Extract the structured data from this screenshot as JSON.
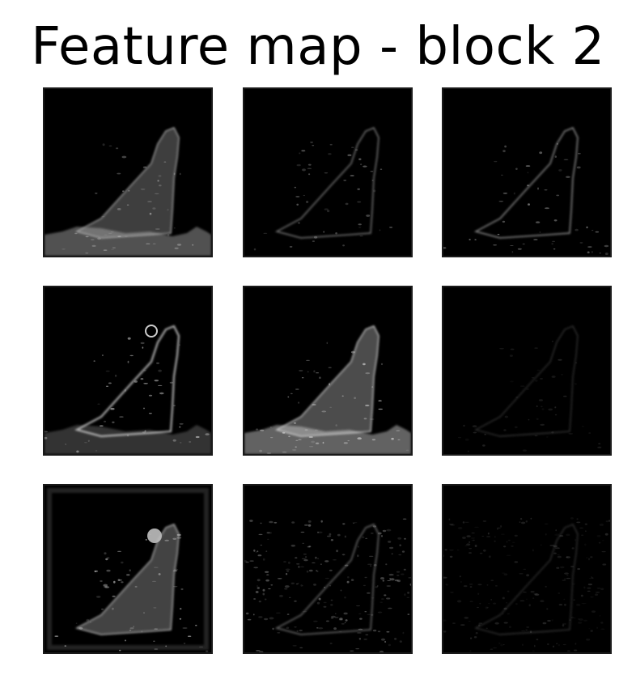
{
  "figure": {
    "title": "Feature map - block 2",
    "background": "#ffffff",
    "panel_background": "#000000",
    "panels": [
      {
        "row": 1,
        "col": 1,
        "style": "soft-body-glow",
        "intensity": 0.7
      },
      {
        "row": 1,
        "col": 2,
        "style": "thin-edge",
        "intensity": 0.55
      },
      {
        "row": 1,
        "col": 3,
        "style": "thin-edge-strong",
        "intensity": 0.65
      },
      {
        "row": 2,
        "col": 1,
        "style": "outline-bright",
        "intensity": 0.8
      },
      {
        "row": 2,
        "col": 2,
        "style": "body-texture",
        "intensity": 0.85
      },
      {
        "row": 2,
        "col": 3,
        "style": "faint-edge",
        "intensity": 0.35
      },
      {
        "row": 3,
        "col": 1,
        "style": "silhouette-head",
        "intensity": 0.75
      },
      {
        "row": 3,
        "col": 2,
        "style": "speckle",
        "intensity": 0.5
      },
      {
        "row": 3,
        "col": 3,
        "style": "faint-speckle",
        "intensity": 0.35
      }
    ]
  }
}
